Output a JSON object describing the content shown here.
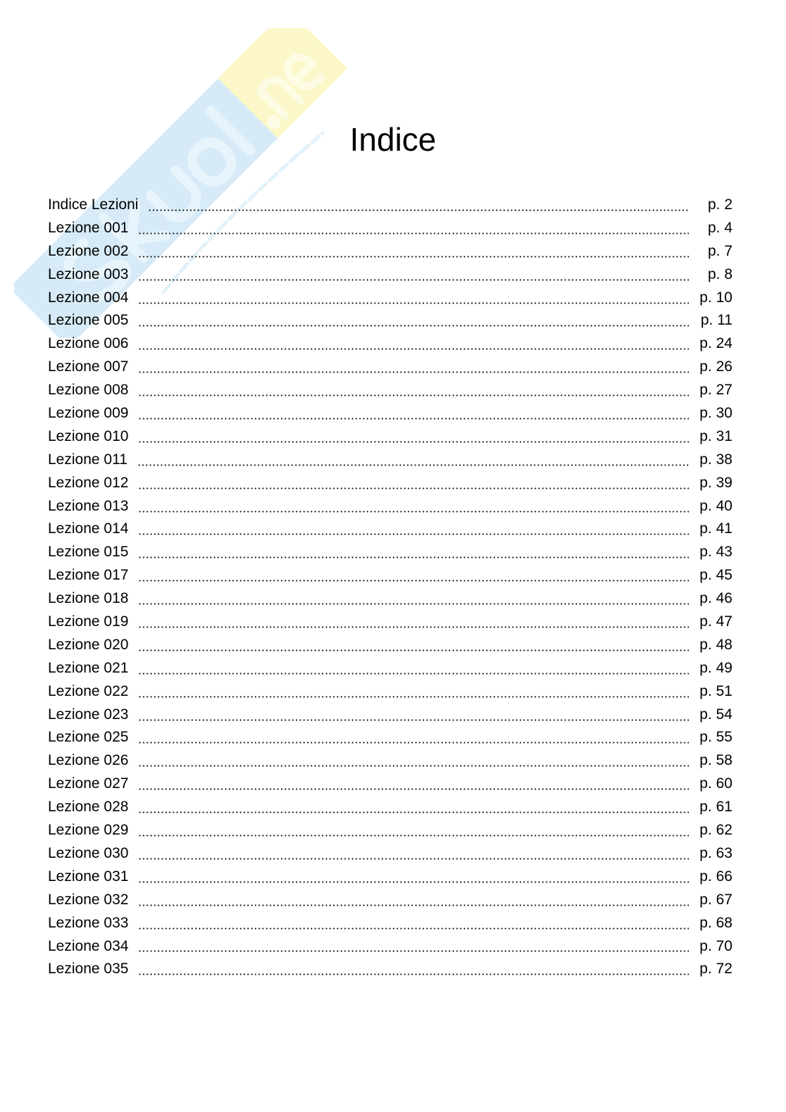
{
  "watermark": {
    "logo_text": "Skuola.net",
    "tagline": "il paradiso dello studente",
    "colors": {
      "blue": "#d6ebf7",
      "yellow": "#fbf7c8"
    }
  },
  "title": "Indice",
  "entries": [
    {
      "label": "Indice Lezioni",
      "page": "p. 2"
    },
    {
      "label": "Lezione 001",
      "page": "p. 4"
    },
    {
      "label": "Lezione 002",
      "page": "p. 7"
    },
    {
      "label": "Lezione 003",
      "page": "p. 8"
    },
    {
      "label": "Lezione 004",
      "page": "p. 10"
    },
    {
      "label": "Lezione 005",
      "page": "p. 11"
    },
    {
      "label": "Lezione 006",
      "page": "p. 24"
    },
    {
      "label": "Lezione 007",
      "page": "p. 26"
    },
    {
      "label": "Lezione 008",
      "page": "p. 27"
    },
    {
      "label": "Lezione 009",
      "page": "p. 30"
    },
    {
      "label": "Lezione 010",
      "page": "p. 31"
    },
    {
      "label": "Lezione 011",
      "page": "p. 38"
    },
    {
      "label": "Lezione 012",
      "page": "p. 39"
    },
    {
      "label": "Lezione 013",
      "page": "p. 40"
    },
    {
      "label": "Lezione 014",
      "page": "p. 41"
    },
    {
      "label": "Lezione 015",
      "page": "p. 43"
    },
    {
      "label": "Lezione 017",
      "page": "p. 45"
    },
    {
      "label": "Lezione 018",
      "page": "p. 46"
    },
    {
      "label": "Lezione 019",
      "page": "p. 47"
    },
    {
      "label": "Lezione 020",
      "page": "p. 48"
    },
    {
      "label": "Lezione 021",
      "page": "p. 49"
    },
    {
      "label": "Lezione 022",
      "page": "p. 51"
    },
    {
      "label": "Lezione 023",
      "page": "p. 54"
    },
    {
      "label": "Lezione 025",
      "page": "p. 55"
    },
    {
      "label": "Lezione 026",
      "page": "p. 58"
    },
    {
      "label": "Lezione 027",
      "page": "p. 60"
    },
    {
      "label": "Lezione 028",
      "page": "p. 61"
    },
    {
      "label": "Lezione 029",
      "page": "p. 62"
    },
    {
      "label": "Lezione 030",
      "page": "p. 63"
    },
    {
      "label": "Lezione 031",
      "page": "p. 66"
    },
    {
      "label": "Lezione 032",
      "page": "p. 67"
    },
    {
      "label": "Lezione 033",
      "page": "p. 68"
    },
    {
      "label": "Lezione 034",
      "page": "p. 70"
    },
    {
      "label": "Lezione 035",
      "page": "p. 72"
    }
  ]
}
